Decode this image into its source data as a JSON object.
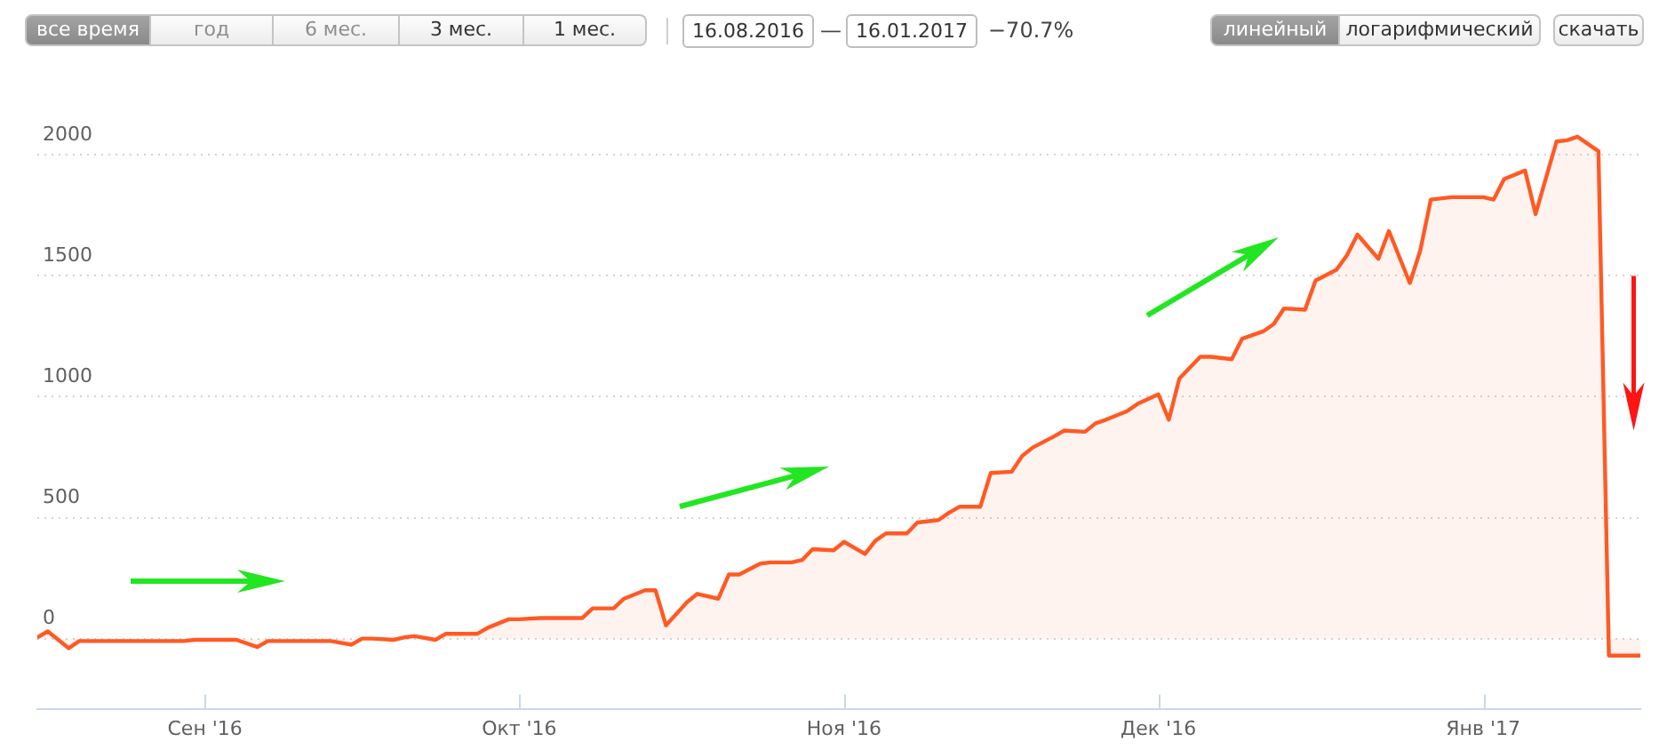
{
  "chart_data": {
    "type": "area",
    "annotations": [
      "все время",
      "год",
      "6 мес.",
      "3 мес.",
      "1 мес.",
      "16.08.2016",
      "—",
      "16.01.2017",
      "−70.7%",
      "линейный",
      "логарифмический",
      "скачать"
    ],
    "x": [
      "2016-08-16",
      "2016-08-17",
      "2016-08-19",
      "2016-08-20",
      "2016-08-27",
      "2016-08-30",
      "2016-08-31",
      "2016-09-04",
      "2016-09-06",
      "2016-09-07",
      "2016-09-13",
      "2016-09-15",
      "2016-09-16",
      "2016-09-17",
      "2016-09-19",
      "2016-09-20",
      "2016-09-21",
      "2016-09-23",
      "2016-09-24",
      "2016-09-27",
      "2016-09-28",
      "2016-09-30",
      "2016-10-01",
      "2016-10-03",
      "2016-10-07",
      "2016-10-08",
      "2016-10-10",
      "2016-10-11",
      "2016-10-13",
      "2016-10-14",
      "2016-10-15",
      "2016-10-17",
      "2016-10-18",
      "2016-10-20",
      "2016-10-21",
      "2016-10-22",
      "2016-10-24",
      "2016-10-25",
      "2016-10-27",
      "2016-10-28",
      "2016-10-29",
      "2016-10-31",
      "2016-11-01",
      "2016-11-03",
      "2016-11-04",
      "2016-11-05",
      "2016-11-07",
      "2016-11-08",
      "2016-11-10",
      "2016-11-11",
      "2016-11-12",
      "2016-11-14",
      "2016-11-15",
      "2016-11-17",
      "2016-11-18",
      "2016-11-19",
      "2016-11-21",
      "2016-11-22",
      "2016-11-24",
      "2016-11-25",
      "2016-11-26",
      "2016-11-28",
      "2016-11-29",
      "2016-12-01",
      "2016-12-02",
      "2016-12-03",
      "2016-12-05",
      "2016-12-06",
      "2016-12-08",
      "2016-12-09",
      "2016-12-11",
      "2016-12-12",
      "2016-12-13",
      "2016-12-15",
      "2016-12-16",
      "2016-12-18",
      "2016-12-19",
      "2016-12-20",
      "2016-12-22",
      "2016-12-23",
      "2016-12-25",
      "2016-12-26",
      "2016-12-27",
      "2016-12-29",
      "2017-01-01",
      "2017-01-02",
      "2017-01-03",
      "2017-01-05",
      "2017-01-06",
      "2017-01-08",
      "2017-01-09",
      "2017-01-10",
      "2017-01-12",
      "2017-01-13",
      "2017-01-16"
    ],
    "values": [
      5,
      30,
      -40,
      -10,
      -10,
      -10,
      -5,
      -5,
      -35,
      -10,
      -10,
      -25,
      0,
      0,
      -5,
      5,
      10,
      -5,
      20,
      20,
      45,
      80,
      80,
      85,
      85,
      125,
      125,
      165,
      200,
      200,
      55,
      150,
      185,
      165,
      265,
      265,
      310,
      315,
      315,
      325,
      370,
      365,
      400,
      350,
      405,
      435,
      435,
      480,
      490,
      520,
      545,
      545,
      685,
      690,
      755,
      790,
      835,
      860,
      855,
      890,
      905,
      940,
      970,
      1010,
      905,
      1075,
      1165,
      1165,
      1155,
      1240,
      1270,
      1300,
      1365,
      1360,
      1480,
      1525,
      1585,
      1670,
      1570,
      1685,
      1470,
      1605,
      1815,
      1825,
      1825,
      1815,
      1900,
      1935,
      1755,
      2055,
      2060,
      2075,
      2015,
      -70,
      -70
    ],
    "color": "#ff5a24",
    "xlim": [
      "2016-08-16",
      "2017-01-16"
    ],
    "xticks": [
      {
        "value": "2016-09-01",
        "label": "Сен '16"
      },
      {
        "value": "2016-10-01",
        "label": "Окт '16"
      },
      {
        "value": "2016-11-01",
        "label": "Ноя '16"
      },
      {
        "value": "2016-12-01",
        "label": "Дек '16"
      },
      {
        "value": "2017-01-01",
        "label": "Янв '17"
      }
    ],
    "ylim": [
      -290,
      2640
    ],
    "yticks": [
      0,
      500,
      1000,
      1500,
      2000
    ],
    "grid": "y"
  }
}
